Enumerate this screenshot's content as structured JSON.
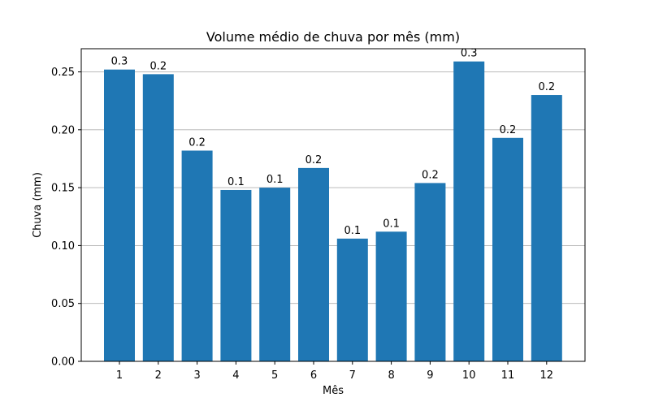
{
  "chart_data": {
    "type": "bar",
    "title": "Volume médio de chuva por mês (mm)",
    "xlabel": "Mês",
    "ylabel": "Chuva (mm)",
    "categories": [
      "1",
      "2",
      "3",
      "4",
      "5",
      "6",
      "7",
      "8",
      "9",
      "10",
      "11",
      "12"
    ],
    "values": [
      0.252,
      0.248,
      0.182,
      0.148,
      0.15,
      0.167,
      0.106,
      0.112,
      0.154,
      0.259,
      0.193,
      0.23
    ],
    "data_labels": [
      "0.3",
      "0.2",
      "0.2",
      "0.1",
      "0.1",
      "0.2",
      "0.1",
      "0.1",
      "0.2",
      "0.3",
      "0.2",
      "0.2"
    ],
    "ylim": [
      0,
      0.27
    ],
    "yticks": [
      "0.00",
      "0.05",
      "0.10",
      "0.15",
      "0.20",
      "0.25"
    ],
    "ytick_values": [
      0,
      0.05,
      0.1,
      0.15,
      0.2,
      0.25
    ],
    "grid": "y-axis only",
    "bar_color": "#1f77b4"
  }
}
